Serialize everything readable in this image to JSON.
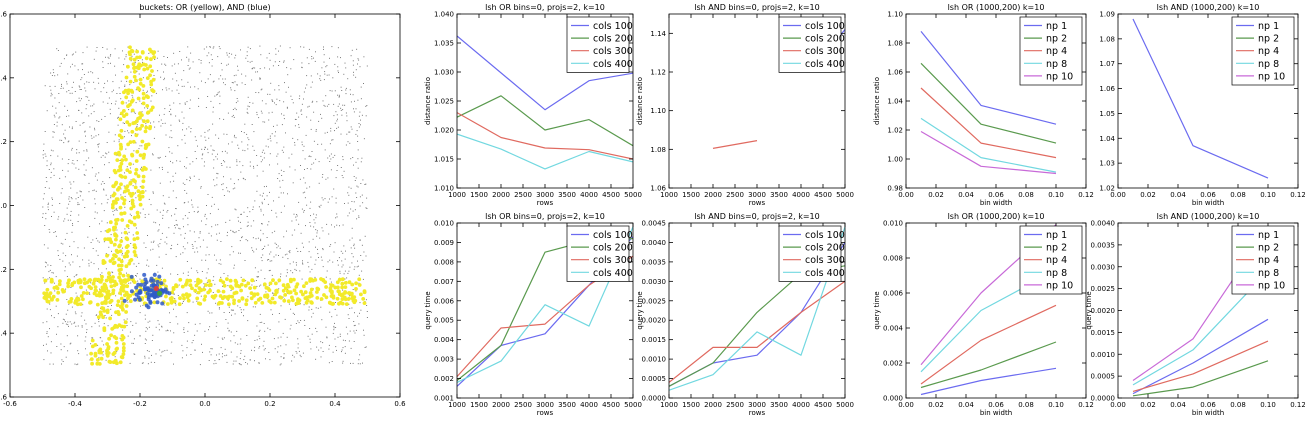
{
  "figure": {
    "colors": {
      "c1": "#6b6bf0",
      "c2": "#5a9a4e",
      "c3": "#e06a60",
      "c4": "#72d8e0",
      "c5": "#c86ad8",
      "yellow": "#f2ea2a",
      "blue": "#2f5ac8",
      "gray": "#7a7a7a"
    }
  },
  "chart_data": [
    {
      "id": "scatter",
      "type": "scatter",
      "title": "buckets: OR (yellow), AND (blue)",
      "xlabel": "",
      "ylabel": "",
      "xlim": [
        -0.6,
        0.6
      ],
      "ylim": [
        -0.6,
        0.6
      ],
      "xticks": [
        -0.6,
        -0.4,
        -0.2,
        0.0,
        0.2,
        0.4,
        0.6
      ],
      "yticks": [
        -0.6,
        -0.4,
        -0.2,
        0.0,
        0.2,
        0.4,
        0.6
      ],
      "xticklabels": [
        "-0.6",
        "-0.4",
        "-0.2",
        "0.0",
        "0.2",
        "0.4",
        "0.6"
      ],
      "yticklabels": [
        "-0.6",
        "-0.4",
        "-0.2",
        "0.0",
        "0.2",
        "0.4",
        "0.6"
      ],
      "regions": {
        "background": {
          "xrange": [
            -0.5,
            0.5
          ],
          "yrange": [
            -0.5,
            0.5
          ],
          "color": "gray",
          "approx_count": 2400
        },
        "or_bucket_vertical": {
          "color": "yellow",
          "xrange": [
            -0.22,
            -0.12
          ],
          "yrange": [
            -0.5,
            0.5
          ]
        },
        "or_bucket_horizontal": {
          "color": "yellow",
          "xrange": [
            -0.5,
            0.5
          ],
          "yrange": [
            -0.31,
            -0.23
          ]
        },
        "and_bucket": {
          "color": "blue",
          "center": [
            -0.165,
            -0.265
          ],
          "radius": 0.045
        },
        "query_points": [
          [
            -0.15,
            -0.26
          ],
          [
            -0.14,
            -0.275
          ]
        ]
      }
    },
    {
      "id": "or_ratio_rows",
      "type": "line",
      "title": "lsh OR bins=0, projs=2, k=10",
      "xlabel": "rows",
      "ylabel": "distance ratio",
      "xlim": [
        1000,
        5000
      ],
      "ylim": [
        1.01,
        1.04
      ],
      "xticks": [
        1000,
        1500,
        2000,
        2500,
        3000,
        3500,
        4000,
        4500,
        5000
      ],
      "xticklabels": [
        "1000",
        "1500",
        "2000",
        "2500",
        "3000",
        "3500",
        "4000",
        "4500",
        "5000"
      ],
      "yticks": [
        1.01,
        1.015,
        1.02,
        1.025,
        1.03,
        1.035,
        1.04
      ],
      "yticklabels": [
        "1.010",
        "1.015",
        "1.020",
        "1.025",
        "1.030",
        "1.035",
        "1.040"
      ],
      "legend_position": "top-right",
      "series": [
        {
          "name": "cols 100",
          "color": "c1",
          "x": [
            1000,
            3000,
            4000,
            5000
          ],
          "y": [
            1.0362,
            1.0235,
            1.0285,
            1.0298
          ]
        },
        {
          "name": "cols 200",
          "color": "c2",
          "x": [
            1000,
            2000,
            3000,
            4000,
            5000
          ],
          "y": [
            1.0222,
            1.0259,
            1.02,
            1.0218,
            1.0173
          ]
        },
        {
          "name": "cols 300",
          "color": "c3",
          "x": [
            1000,
            2000,
            3000,
            4000,
            5000
          ],
          "y": [
            1.023,
            1.0187,
            1.0169,
            1.0166,
            1.015
          ]
        },
        {
          "name": "cols 400",
          "color": "c4",
          "x": [
            1000,
            2000,
            3000,
            4000,
            5000
          ],
          "y": [
            1.0193,
            1.0167,
            1.0133,
            1.0163,
            1.0145
          ]
        }
      ]
    },
    {
      "id": "and_ratio_rows",
      "type": "line",
      "title": "lsh AND bins=0, projs=2, k=10",
      "xlabel": "rows",
      "ylabel": "distance ratio",
      "xlim": [
        1000,
        5000
      ],
      "ylim": [
        1.06,
        1.15
      ],
      "xticks": [
        1000,
        1500,
        2000,
        2500,
        3000,
        3500,
        4000,
        4500,
        5000
      ],
      "xticklabels": [
        "1000",
        "1500",
        "2000",
        "2500",
        "3000",
        "3500",
        "4000",
        "4500",
        "5000"
      ],
      "yticks": [
        1.06,
        1.08,
        1.1,
        1.12,
        1.14
      ],
      "yticklabels": [
        "1.06",
        "1.08",
        "1.10",
        "1.12",
        "1.14"
      ],
      "legend_position": "top-right",
      "series": [
        {
          "name": "cols 100",
          "color": "c1",
          "x": [
            4600,
            5000
          ],
          "y": [
            1.131,
            1.142
          ]
        },
        {
          "name": "cols 200",
          "color": "c2",
          "x": [],
          "y": []
        },
        {
          "name": "cols 300",
          "color": "c3",
          "x": [
            2000,
            3000
          ],
          "y": [
            1.0805,
            1.0845
          ]
        },
        {
          "name": "cols 400",
          "color": "c4",
          "x": [],
          "y": []
        }
      ]
    },
    {
      "id": "or_time_rows",
      "type": "line",
      "title": "lsh OR bins=0, projs=2, k=10",
      "xlabel": "rows",
      "ylabel": "query time",
      "xlim": [
        1000,
        5000
      ],
      "ylim": [
        0.001,
        0.01
      ],
      "xticks": [
        1000,
        1500,
        2000,
        2500,
        3000,
        3500,
        4000,
        4500,
        5000
      ],
      "xticklabels": [
        "1000",
        "1500",
        "2000",
        "2500",
        "3000",
        "3500",
        "4000",
        "4500",
        "5000"
      ],
      "yticks": [
        0.001,
        0.002,
        0.003,
        0.004,
        0.005,
        0.006,
        0.007,
        0.008,
        0.009,
        0.01
      ],
      "yticklabels": [
        "0.001",
        "0.002",
        "0.003",
        "0.004",
        "0.005",
        "0.006",
        "0.007",
        "0.008",
        "0.009",
        "0.010"
      ],
      "legend_position": "top-right",
      "series": [
        {
          "name": "cols 100",
          "color": "c1",
          "x": [
            1000,
            2000,
            3000,
            4000,
            5000
          ],
          "y": [
            0.0016,
            0.0037,
            0.0043,
            0.0068,
            0.0093
          ]
        },
        {
          "name": "cols 200",
          "color": "c2",
          "x": [
            1000,
            2000,
            3000,
            4000,
            5000
          ],
          "y": [
            0.0019,
            0.0037,
            0.0085,
            0.0091,
            0.0092
          ]
        },
        {
          "name": "cols 300",
          "color": "c3",
          "x": [
            1000,
            2000,
            3000,
            4000,
            5000
          ],
          "y": [
            0.0021,
            0.0046,
            0.0048,
            0.0068,
            0.0083
          ]
        },
        {
          "name": "cols 400",
          "color": "c4",
          "x": [
            1000,
            2000,
            3000,
            4000,
            5000
          ],
          "y": [
            0.0018,
            0.0029,
            0.0058,
            0.0047,
            0.0098
          ]
        }
      ]
    },
    {
      "id": "and_time_rows",
      "type": "line",
      "title": "lsh AND bins=0, projs=2, k=10",
      "xlabel": "rows",
      "ylabel": "query time",
      "xlim": [
        1000,
        5000
      ],
      "ylim": [
        0.0,
        0.0045
      ],
      "xticks": [
        1000,
        1500,
        2000,
        2500,
        3000,
        3500,
        4000,
        4500,
        5000
      ],
      "xticklabels": [
        "1000",
        "1500",
        "2000",
        "2500",
        "3000",
        "3500",
        "4000",
        "4500",
        "5000"
      ],
      "yticks": [
        0.0,
        0.0005,
        0.001,
        0.0015,
        0.002,
        0.0025,
        0.003,
        0.0035,
        0.004,
        0.0045
      ],
      "yticklabels": [
        "0.0000",
        "0.0005",
        "0.0010",
        "0.0015",
        "0.0020",
        "0.0025",
        "0.0030",
        "0.0035",
        "0.0040",
        "0.0045"
      ],
      "legend_position": "top-right",
      "series": [
        {
          "name": "cols 100",
          "color": "c1",
          "x": [
            1000,
            2000,
            3000,
            4000,
            5000
          ],
          "y": [
            0.0003,
            0.0009,
            0.0011,
            0.0022,
            0.004
          ]
        },
        {
          "name": "cols 200",
          "color": "c2",
          "x": [
            1000,
            2000,
            3000,
            4000,
            5000
          ],
          "y": [
            0.0003,
            0.0009,
            0.0022,
            0.0032,
            0.0034
          ]
        },
        {
          "name": "cols 300",
          "color": "c3",
          "x": [
            1000,
            2000,
            3000,
            4000,
            5000
          ],
          "y": [
            0.0004,
            0.0013,
            0.0013,
            0.0022,
            0.003
          ]
        },
        {
          "name": "cols 400",
          "color": "c4",
          "x": [
            1000,
            2000,
            3000,
            4000,
            5000
          ],
          "y": [
            0.0002,
            0.0006,
            0.0017,
            0.0011,
            0.0044
          ]
        }
      ]
    },
    {
      "id": "or_ratio_bw",
      "type": "line",
      "title": "lsh OR (1000,200) k=10",
      "xlabel": "bin width",
      "ylabel": "distance ratio",
      "xlim": [
        0.0,
        0.12
      ],
      "ylim": [
        0.98,
        1.1
      ],
      "xticks": [
        0.0,
        0.02,
        0.04,
        0.06,
        0.08,
        0.1,
        0.12
      ],
      "xticklabels": [
        "0.00",
        "0.02",
        "0.04",
        "0.06",
        "0.08",
        "0.10",
        "0.12"
      ],
      "yticks": [
        0.98,
        1.0,
        1.02,
        1.04,
        1.06,
        1.08,
        1.1
      ],
      "yticklabels": [
        "0.98",
        "1.00",
        "1.02",
        "1.04",
        "1.06",
        "1.08",
        "1.10"
      ],
      "legend_position": "top-right",
      "series": [
        {
          "name": "np 1",
          "color": "c1",
          "x": [
            0.01,
            0.05,
            0.1
          ],
          "y": [
            1.088,
            1.037,
            1.024
          ]
        },
        {
          "name": "np 2",
          "color": "c2",
          "x": [
            0.01,
            0.05,
            0.1
          ],
          "y": [
            1.066,
            1.024,
            1.011
          ]
        },
        {
          "name": "np 4",
          "color": "c3",
          "x": [
            0.01,
            0.05,
            0.1
          ],
          "y": [
            1.049,
            1.011,
            1.001
          ]
        },
        {
          "name": "np 8",
          "color": "c4",
          "x": [
            0.01,
            0.05,
            0.1
          ],
          "y": [
            1.028,
            1.001,
            0.991
          ]
        },
        {
          "name": "np 10",
          "color": "c5",
          "x": [
            0.01,
            0.05,
            0.1
          ],
          "y": [
            1.019,
            0.995,
            0.99
          ]
        }
      ]
    },
    {
      "id": "and_ratio_bw",
      "type": "line",
      "title": "lsh AND (1000,200) k=10",
      "xlabel": "bin width",
      "ylabel": "",
      "xlim": [
        0.0,
        0.12
      ],
      "ylim": [
        1.02,
        1.09
      ],
      "xticks": [
        0.0,
        0.02,
        0.04,
        0.06,
        0.08,
        0.1,
        0.12
      ],
      "xticklabels": [
        "0.00",
        "0.02",
        "0.04",
        "0.06",
        "0.08",
        "0.10",
        "0.12"
      ],
      "yticks": [
        1.02,
        1.03,
        1.04,
        1.05,
        1.06,
        1.07,
        1.08,
        1.09
      ],
      "yticklabels": [
        "1.02",
        "1.03",
        "1.04",
        "1.05",
        "1.06",
        "1.07",
        "1.08",
        "1.09"
      ],
      "legend_position": "top-right",
      "series": [
        {
          "name": "np 1",
          "color": "c1",
          "x": [
            0.01,
            0.05,
            0.1
          ],
          "y": [
            1.088,
            1.037,
            1.024
          ]
        },
        {
          "name": "np 2",
          "color": "c2",
          "x": [],
          "y": []
        },
        {
          "name": "np 4",
          "color": "c3",
          "x": [],
          "y": []
        },
        {
          "name": "np 8",
          "color": "c4",
          "x": [],
          "y": []
        },
        {
          "name": "np 10",
          "color": "c5",
          "x": [],
          "y": []
        }
      ]
    },
    {
      "id": "or_time_bw",
      "type": "line",
      "title": "lsh OR (1000,200) k=10",
      "xlabel": "bin width",
      "ylabel": "query time",
      "xlim": [
        0.0,
        0.12
      ],
      "ylim": [
        0.0,
        0.01
      ],
      "xticks": [
        0.0,
        0.02,
        0.04,
        0.06,
        0.08,
        0.1,
        0.12
      ],
      "xticklabels": [
        "0.00",
        "0.02",
        "0.04",
        "0.06",
        "0.08",
        "0.10",
        "0.12"
      ],
      "yticks": [
        0.0,
        0.002,
        0.004,
        0.006,
        0.008,
        0.01
      ],
      "yticklabels": [
        "0.000",
        "0.002",
        "0.004",
        "0.006",
        "0.008",
        "0.010"
      ],
      "legend_position": "top-right",
      "series": [
        {
          "name": "np 1",
          "color": "c1",
          "x": [
            0.01,
            0.05,
            0.1
          ],
          "y": [
            0.0002,
            0.001,
            0.0017
          ]
        },
        {
          "name": "np 2",
          "color": "c2",
          "x": [
            0.01,
            0.05,
            0.1
          ],
          "y": [
            0.0006,
            0.0016,
            0.0032
          ]
        },
        {
          "name": "np 4",
          "color": "c3",
          "x": [
            0.01,
            0.05,
            0.1
          ],
          "y": [
            0.0008,
            0.0033,
            0.0053
          ]
        },
        {
          "name": "np 8",
          "color": "c4",
          "x": [
            0.01,
            0.05,
            0.1
          ],
          "y": [
            0.0015,
            0.005,
            0.0073
          ]
        },
        {
          "name": "np 10",
          "color": "c5",
          "x": [
            0.01,
            0.05,
            0.1
          ],
          "y": [
            0.0019,
            0.006,
            0.0099
          ]
        }
      ]
    },
    {
      "id": "and_time_bw",
      "type": "line",
      "title": "lsh AND (1000,200) k=10",
      "xlabel": "bin width",
      "ylabel": "query time",
      "xlim": [
        0.0,
        0.12
      ],
      "ylim": [
        0.0,
        0.004
      ],
      "xticks": [
        0.0,
        0.02,
        0.04,
        0.06,
        0.08,
        0.1,
        0.12
      ],
      "xticklabels": [
        "0.00",
        "0.02",
        "0.04",
        "0.06",
        "0.08",
        "0.10",
        "0.12"
      ],
      "yticks": [
        0.0,
        0.0005,
        0.001,
        0.0015,
        0.002,
        0.0025,
        0.003,
        0.0035,
        0.004
      ],
      "yticklabels": [
        "0.0000",
        "0.0005",
        "0.0010",
        "0.0015",
        "0.0020",
        "0.0025",
        "0.0030",
        "0.0035",
        "0.0040"
      ],
      "legend_position": "top-right",
      "series": [
        {
          "name": "np 1",
          "color": "c1",
          "x": [
            0.01,
            0.05,
            0.1
          ],
          "y": [
            0.0001,
            0.0008,
            0.0018
          ]
        },
        {
          "name": "np 2",
          "color": "c2",
          "x": [
            0.01,
            0.05,
            0.1
          ],
          "y": [
            5e-05,
            0.00025,
            0.00085
          ]
        },
        {
          "name": "np 4",
          "color": "c3",
          "x": [
            0.01,
            0.05,
            0.1
          ],
          "y": [
            0.00015,
            0.00055,
            0.0013
          ]
        },
        {
          "name": "np 8",
          "color": "c4",
          "x": [
            0.01,
            0.05,
            0.1
          ],
          "y": [
            0.0003,
            0.0011,
            0.0029
          ]
        },
        {
          "name": "np 10",
          "color": "c5",
          "x": [
            0.01,
            0.05,
            0.1
          ],
          "y": [
            0.0004,
            0.00135,
            0.0039
          ]
        }
      ]
    }
  ]
}
